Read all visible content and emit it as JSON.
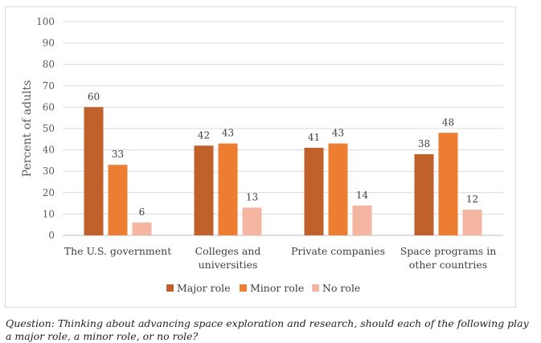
{
  "chart_data": {
    "type": "bar",
    "title": "",
    "xlabel": "",
    "ylabel": "Percent of adults",
    "ylim": [
      0,
      100
    ],
    "yticks": [
      0,
      10,
      20,
      30,
      40,
      50,
      60,
      70,
      80,
      90,
      100
    ],
    "grid": true,
    "legend_position": "bottom",
    "categories": [
      [
        "The U.S. government"
      ],
      [
        "Colleges and",
        "universities"
      ],
      [
        "Private companies"
      ],
      [
        "Space programs in",
        "other countries"
      ]
    ],
    "series": [
      {
        "name": "Major role",
        "color": "#c0612b",
        "values": [
          60,
          42,
          41,
          38
        ]
      },
      {
        "name": "Minor role",
        "color": "#ed7d31",
        "values": [
          33,
          43,
          43,
          48
        ]
      },
      {
        "name": "No role",
        "color": "#f4b6a0",
        "values": [
          6,
          13,
          14,
          12
        ]
      }
    ]
  },
  "question": "Question: Thinking about advancing space exploration and research, should each of the following play a major role, a minor role, or no role?"
}
